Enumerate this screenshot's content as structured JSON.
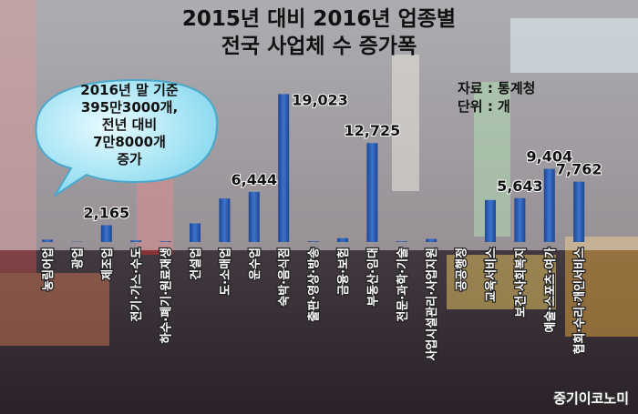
{
  "chart_data": {
    "type": "bar",
    "title_lines": [
      "2015년 대비 2016년 업종별",
      "전국 사업체 수 증가폭"
    ],
    "categories": [
      "농림어업",
      "광업",
      "제조업",
      "전기·가스·수도",
      "하수·폐기·원료재생",
      "건설업",
      "도·소매업",
      "운수업",
      "숙박·음식점",
      "출판·영상·방송",
      "금융·보험",
      "부동산·임대",
      "전문·과학·기술",
      "사업시설관리·사업지원",
      "공공행정",
      "교육서비스",
      "보건·사회복지",
      "예술·스포츠·여가",
      "협회·수리·개인서비스"
    ],
    "values": [
      300,
      50,
      2165,
      200,
      100,
      2400,
      5600,
      6444,
      19023,
      100,
      500,
      12725,
      100,
      400,
      0,
      5400,
      5643,
      9404,
      7762
    ],
    "value_labels": [
      null,
      null,
      "2,165",
      null,
      null,
      null,
      null,
      "6,444",
      "19,023",
      null,
      null,
      "12,725",
      null,
      null,
      null,
      null,
      "5,643",
      "9,404",
      "7,762"
    ],
    "color": "#2f5fb3",
    "ylim": [
      0,
      20000
    ],
    "callout_lines": [
      "2016년 말 기준",
      "395만3000개,",
      "전년 대비",
      "7만8000개",
      "증가"
    ],
    "source_lines": [
      "자료 : 통계청",
      "단위 : 개"
    ],
    "logo": "중기이코노미"
  }
}
